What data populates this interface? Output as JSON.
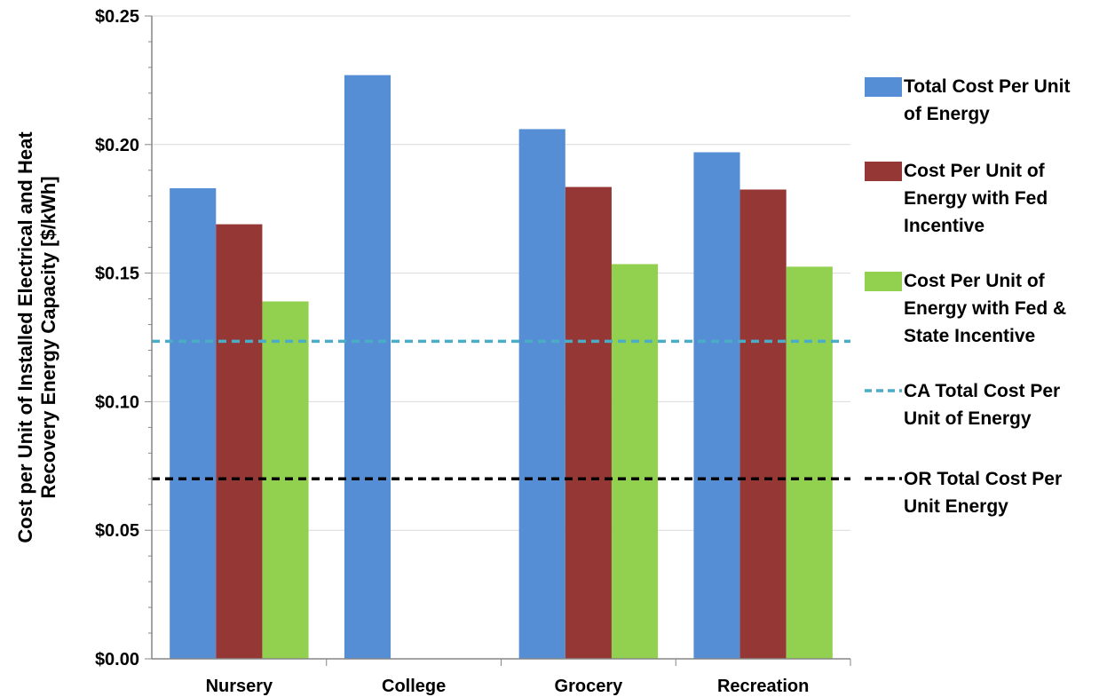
{
  "chart_data": {
    "type": "bar",
    "ylabel": [
      "Cost per Unit of Installed Electrical and Heat",
      "Recovery Energy Capacity [$/kWh]"
    ],
    "ylim": [
      0,
      0.25
    ],
    "y_major_step": 0.05,
    "y_minor_step": 0.01,
    "y_tick_labels": [
      "$0.00",
      "$0.05",
      "$0.10",
      "$0.15",
      "$0.20",
      "$0.25"
    ],
    "categories": [
      "Nursery",
      "College",
      "Grocery",
      "Recreation"
    ],
    "grid": true,
    "legend_position": "right",
    "series": [
      {
        "name": "Total Cost Per Unit of Energy",
        "legend_lines": [
          "Total Cost Per Unit",
          "of Energy"
        ],
        "color": "#558ED5",
        "values": [
          0.183,
          0.227,
          0.206,
          0.197
        ]
      },
      {
        "name": "Cost Per Unit of Energy with Fed Incentive",
        "legend_lines": [
          "Cost Per Unit of",
          "Energy with Fed",
          "Incentive"
        ],
        "color": "#953735",
        "values": [
          0.169,
          null,
          0.1835,
          0.1825
        ]
      },
      {
        "name": "Cost Per Unit of Energy with Fed & State Incentive",
        "legend_lines": [
          "Cost Per Unit of",
          "Energy with Fed &",
          "State Incentive"
        ],
        "color": "#92D050",
        "values": [
          0.139,
          null,
          0.1535,
          0.1525
        ]
      }
    ],
    "reference_lines": [
      {
        "name": "CA Total Cost Per Unit of Energy",
        "legend_lines": [
          "CA Total Cost Per",
          "Unit of Energy"
        ],
        "color": "#4BACC6",
        "value": 0.1235
      },
      {
        "name": "OR Total Cost Per Unit Energy",
        "legend_lines": [
          "OR Total Cost Per",
          "Unit Energy"
        ],
        "color": "#000000",
        "value": 0.07
      }
    ]
  }
}
